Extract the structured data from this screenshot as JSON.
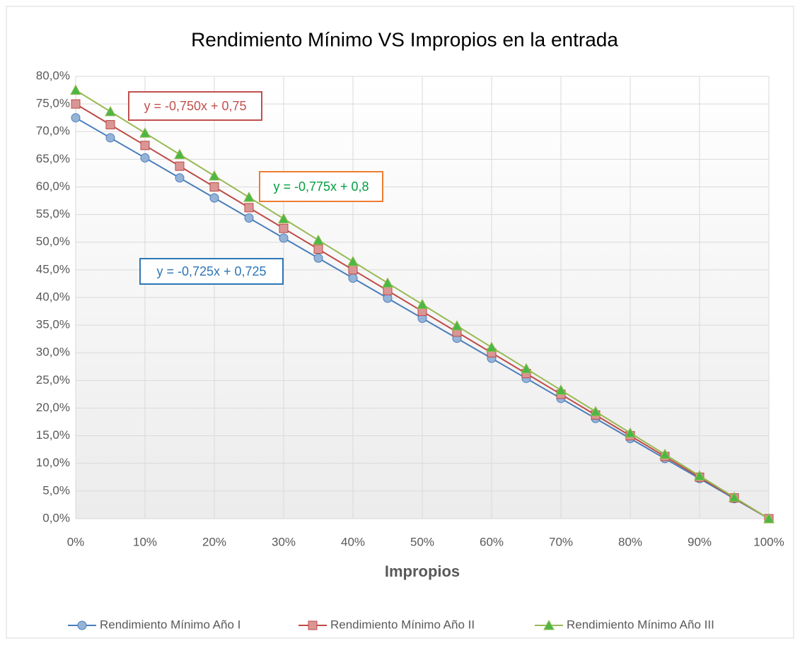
{
  "chart_data": {
    "type": "line",
    "title": "Rendimiento Mínimo VS Impropios en la entrada",
    "x_label": "Impropios",
    "x": [
      0,
      5,
      10,
      15,
      20,
      25,
      30,
      35,
      40,
      45,
      50,
      55,
      60,
      65,
      70,
      75,
      80,
      85,
      90,
      95,
      100
    ],
    "series": [
      {
        "name": "Rendimiento Mínimo Año I",
        "color": "#4a7ebb",
        "marker": "circle",
        "marker_fill": "#95b3d7",
        "values": [
          72.5,
          68.875,
          65.25,
          61.625,
          58,
          54.375,
          50.75,
          47.125,
          43.5,
          39.875,
          36.25,
          32.625,
          29,
          25.375,
          21.75,
          18.125,
          14.5,
          10.875,
          7.25,
          3.625,
          0
        ]
      },
      {
        "name": "Rendimiento Mínimo Año II",
        "color": "#be4b48",
        "marker": "square",
        "marker_fill": "#d99694",
        "values": [
          75,
          71.25,
          67.5,
          63.75,
          60,
          56.25,
          52.5,
          48.75,
          45,
          41.25,
          37.5,
          33.75,
          30,
          26.25,
          22.5,
          18.75,
          15,
          11.25,
          7.5,
          3.75,
          0
        ]
      },
      {
        "name": "Rendimiento Mínimo Año III",
        "color": "#98b954",
        "marker": "triangle",
        "marker_fill": "#4cb843",
        "values": [
          77.5,
          73.625,
          69.75,
          65.875,
          62,
          58.125,
          54.25,
          50.375,
          46.5,
          42.625,
          38.75,
          34.875,
          31,
          27.125,
          23.25,
          19.375,
          15.5,
          11.625,
          7.75,
          3.875,
          0
        ]
      }
    ],
    "annotations": [
      {
        "text": "y = -0,750x + 0,75",
        "color": "#c0504d",
        "border_color": "#c0504d"
      },
      {
        "text": "y = -0,775x + 0,8",
        "color": "#00a040",
        "border_color": "#ed7d31"
      },
      {
        "text": "y = -0,725x + 0,725",
        "color": "#2e75b6",
        "border_color": "#2e75b6"
      }
    ],
    "xlim": [
      0,
      100
    ],
    "xticks": [
      {
        "value": 0,
        "label": "0%"
      },
      {
        "value": 10,
        "label": "10%"
      },
      {
        "value": 20,
        "label": "20%"
      },
      {
        "value": 30,
        "label": "30%"
      },
      {
        "value": 40,
        "label": "40%"
      },
      {
        "value": 50,
        "label": "50%"
      },
      {
        "value": 60,
        "label": "60%"
      },
      {
        "value": 70,
        "label": "70%"
      },
      {
        "value": 80,
        "label": "80%"
      },
      {
        "value": 90,
        "label": "90%"
      },
      {
        "value": 100,
        "label": "100%"
      }
    ],
    "ylim": [
      0,
      80
    ],
    "yticks": [
      {
        "value": 0,
        "label": "0,0%"
      },
      {
        "value": 5,
        "label": "5,0%"
      },
      {
        "value": 10,
        "label": "10,0%"
      },
      {
        "value": 15,
        "label": "15,0%"
      },
      {
        "value": 20,
        "label": "20,0%"
      },
      {
        "value": 25,
        "label": "25,0%"
      },
      {
        "value": 30,
        "label": "30,0%"
      },
      {
        "value": 35,
        "label": "35,0%"
      },
      {
        "value": 40,
        "label": "40,0%"
      },
      {
        "value": 45,
        "label": "45,0%"
      },
      {
        "value": 50,
        "label": "50,0%"
      },
      {
        "value": 55,
        "label": "55,0%"
      },
      {
        "value": 60,
        "label": "60,0%"
      },
      {
        "value": 65,
        "label": "65,0%"
      },
      {
        "value": 70,
        "label": "70,0%"
      },
      {
        "value": 75,
        "label": "75,0%"
      },
      {
        "value": 80,
        "label": "80,0%"
      }
    ],
    "grid": true,
    "legend": "bottom"
  }
}
